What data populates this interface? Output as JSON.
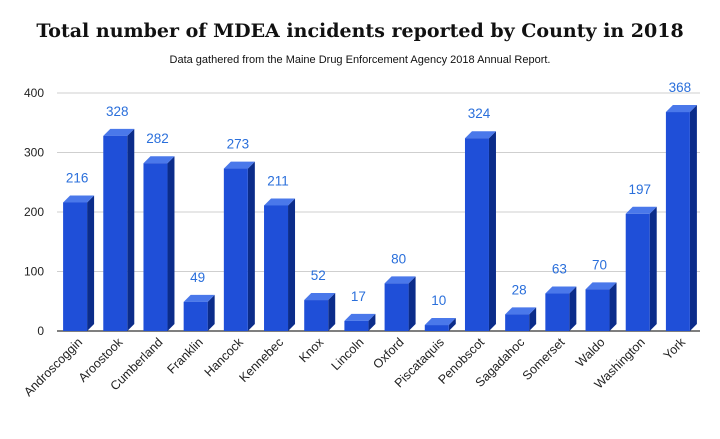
{
  "title": "Total number of MDEA incidents reported by County in 2018",
  "subtitle": "Data gathered from the Maine Drug Enforcement Agency 2018 Annual Report.",
  "chart_data": {
    "type": "bar",
    "title": "Total number of MDEA incidents reported by County in 2018",
    "subtitle": "Data gathered from the Maine Drug Enforcement Agency 2018 Annual Report.",
    "categories": [
      "Androscoggin",
      "Aroostook",
      "Cumberland",
      "Franklin",
      "Hancock",
      "Kennebec",
      "Knox",
      "Lincoln",
      "Oxford",
      "Piscataquis",
      "Penobscot",
      "Sagadahoc",
      "Somerset",
      "Waldo",
      "Washington",
      "York"
    ],
    "values": [
      216,
      328,
      282,
      49,
      273,
      211,
      52,
      17,
      80,
      10,
      324,
      28,
      63,
      70,
      197,
      368
    ],
    "xlabel": "",
    "ylabel": "",
    "ylim": [
      0,
      400
    ],
    "yticks": [
      0,
      100,
      200,
      300,
      400
    ],
    "grid": true,
    "legend": "none",
    "bar_color": "#1f4fd8",
    "bar_side_color": "#0b2c8a",
    "bar_top_color": "#4a78ea",
    "label_color": "#2a6fdb"
  }
}
